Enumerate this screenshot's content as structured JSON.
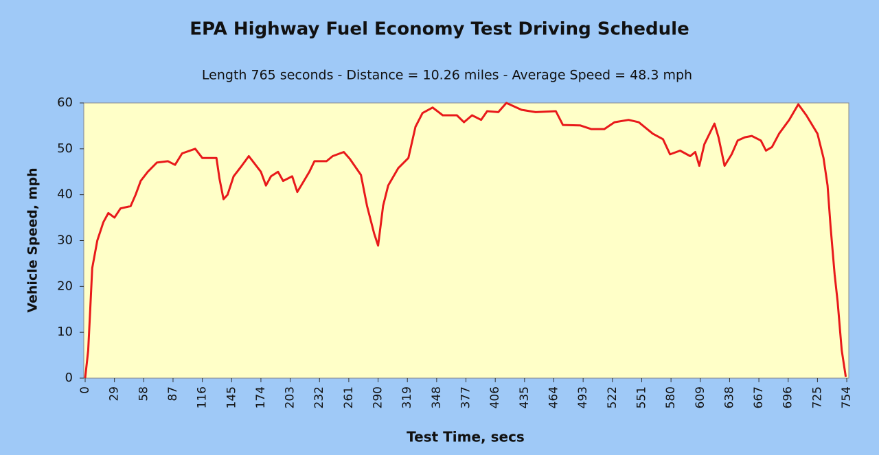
{
  "chart_data": {
    "type": "line",
    "title": "EPA Highway Fuel Economy Test Driving Schedule",
    "subtitle": "Length 765 seconds - Distance = 10.26 miles - Average Speed = 48.3 mph",
    "x_label": "Test Time, secs",
    "y_label": "Vehicle Speed, mph",
    "color": "#e8191a",
    "x": [
      0,
      3,
      5,
      7,
      12,
      18,
      23,
      29,
      35,
      45,
      50,
      55,
      62,
      71,
      82,
      89,
      96,
      109,
      116,
      123,
      130,
      133,
      137,
      141,
      147,
      154,
      162,
      167,
      174,
      179,
      184,
      191,
      196,
      205,
      210,
      215,
      222,
      227,
      239,
      245,
      256,
      262,
      273,
      279,
      286,
      290,
      295,
      300,
      310,
      320,
      327,
      334,
      344,
      354,
      368,
      375,
      383,
      392,
      398,
      409,
      417,
      432,
      446,
      466,
      473,
      490,
      501,
      514,
      524,
      538,
      548,
      562,
      572,
      579,
      589,
      599,
      604,
      608,
      613,
      623,
      627,
      633,
      640,
      646,
      653,
      660,
      669,
      674,
      680,
      687,
      697,
      706,
      714,
      725,
      731,
      735,
      738,
      742,
      745,
      749,
      753
    ],
    "values": [
      0,
      6,
      15,
      24,
      30,
      34,
      36,
      35,
      37,
      37.5,
      40,
      43,
      45,
      47,
      47.3,
      46.5,
      49,
      50,
      48,
      48,
      48,
      43.5,
      39,
      40,
      44,
      46,
      48.4,
      47,
      45,
      42,
      44,
      45,
      43,
      44,
      40.6,
      42.4,
      45,
      47.3,
      47.3,
      48.4,
      49.3,
      47.8,
      44.3,
      37.6,
      31.6,
      28.9,
      37.6,
      42,
      45.8,
      48,
      54.8,
      57.8,
      59,
      57.3,
      57.3,
      55.8,
      57.3,
      56.3,
      58.2,
      58,
      60,
      58.5,
      58,
      58.2,
      55.2,
      55.1,
      54.3,
      54.3,
      55.8,
      56.3,
      55.8,
      53.3,
      52.1,
      48.8,
      49.6,
      48.4,
      49.3,
      46.3,
      51,
      55.5,
      52.5,
      46.3,
      48.8,
      51.8,
      52.5,
      52.8,
      51.8,
      49.6,
      50.4,
      53.3,
      56.3,
      59.7,
      57.3,
      53.3,
      48,
      42,
      33,
      22.6,
      16.6,
      6.1,
      0.3
    ],
    "xlim": [
      0,
      756
    ],
    "xticks": [
      0,
      29,
      58,
      87,
      116,
      145,
      174,
      203,
      232,
      261,
      290,
      319,
      348,
      377,
      406,
      435,
      464,
      493,
      522,
      551,
      580,
      609,
      638,
      667,
      696,
      725,
      754
    ],
    "ylim": [
      0,
      60
    ],
    "yticks": [
      0,
      10,
      20,
      30,
      40,
      50,
      60
    ]
  }
}
